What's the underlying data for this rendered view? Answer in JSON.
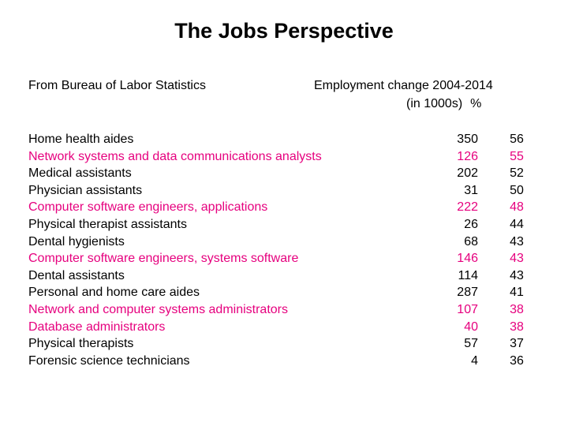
{
  "title": "The Jobs Perspective",
  "source": "From Bureau of Labor Statistics",
  "header": {
    "line1": "Employment change 2004-2014",
    "line2_unit": "(in 1000s)",
    "line2_pct": "%"
  },
  "colors": {
    "text": "#000000",
    "highlight": "#e6007e"
  },
  "rows": [
    {
      "name": "Home health aides",
      "change": "350",
      "pct": "56",
      "highlight": false
    },
    {
      "name": "Network systems and data communications analysts",
      "change": "126",
      "pct": "55",
      "highlight": true
    },
    {
      "name": "Medical assistants",
      "change": "202",
      "pct": "52",
      "highlight": false
    },
    {
      "name": "Physician assistants",
      "change": "31",
      "pct": "50",
      "highlight": false
    },
    {
      "name": "Computer software engineers, applications",
      "change": "222",
      "pct": "48",
      "highlight": true
    },
    {
      "name": "Physical therapist assistants",
      "change": "26",
      "pct": "44",
      "highlight": false
    },
    {
      "name": "Dental hygienists",
      "change": "68",
      "pct": "43",
      "highlight": false
    },
    {
      "name": "Computer software engineers, systems software",
      "change": "146",
      "pct": "43",
      "highlight": true
    },
    {
      "name": "Dental assistants",
      "change": "114",
      "pct": "43",
      "highlight": false
    },
    {
      "name": "Personal and home care aides",
      "change": "287",
      "pct": "41",
      "highlight": false
    },
    {
      "name": "Network and computer systems administrators",
      "change": "107",
      "pct": "38",
      "highlight": true
    },
    {
      "name": "Database administrators",
      "change": "40",
      "pct": "38",
      "highlight": true
    },
    {
      "name": "Physical therapists",
      "change": "57",
      "pct": "37",
      "highlight": false
    },
    {
      "name": "Forensic science technicians",
      "change": "4",
      "pct": "36",
      "highlight": false
    }
  ]
}
